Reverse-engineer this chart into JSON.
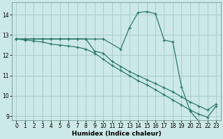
{
  "title": "",
  "xlabel": "Humidex (Indice chaleur)",
  "x": [
    0,
    1,
    2,
    3,
    4,
    5,
    6,
    7,
    8,
    9,
    10,
    11,
    12,
    13,
    14,
    15,
    16,
    17,
    18,
    19,
    20,
    21,
    22,
    23
  ],
  "line1_x": [
    0,
    1,
    2,
    3,
    4,
    5,
    6,
    7,
    8,
    9,
    10,
    12,
    13,
    14,
    15,
    16,
    17,
    18,
    19,
    20,
    21,
    22
  ],
  "line1_y": [
    12.8,
    12.8,
    12.8,
    12.8,
    12.8,
    12.8,
    12.8,
    12.8,
    12.8,
    12.8,
    12.8,
    12.3,
    13.35,
    14.1,
    14.15,
    14.05,
    12.75,
    12.65,
    10.45,
    9.25,
    8.75,
    8.75
  ],
  "line2": [
    12.8,
    12.8,
    12.8,
    12.8,
    12.8,
    12.8,
    12.8,
    12.8,
    12.8,
    12.2,
    12.1,
    11.7,
    11.45,
    11.2,
    11.0,
    10.8,
    10.6,
    10.4,
    10.2,
    9.95,
    9.7,
    9.5,
    9.3,
    9.6
  ],
  "line3": [
    12.8,
    12.75,
    12.7,
    12.65,
    12.55,
    12.5,
    12.45,
    12.4,
    12.3,
    12.1,
    11.8,
    11.5,
    11.25,
    11.0,
    10.75,
    10.55,
    10.3,
    10.05,
    9.8,
    9.55,
    9.3,
    9.1,
    8.95,
    9.5
  ],
  "bg_color": "#cce8e8",
  "grid_color": "#aacccc",
  "line_color": "#2a7a6a",
  "xlim": [
    -0.5,
    23.5
  ],
  "ylim": [
    8.8,
    14.6
  ],
  "yticks": [
    9,
    10,
    11,
    12,
    13,
    14
  ],
  "xticks": [
    0,
    1,
    2,
    3,
    4,
    5,
    6,
    7,
    8,
    9,
    10,
    11,
    12,
    13,
    14,
    15,
    16,
    17,
    18,
    19,
    20,
    21,
    22,
    23
  ],
  "tick_fontsize": 5.5,
  "xlabel_fontsize": 6.5
}
